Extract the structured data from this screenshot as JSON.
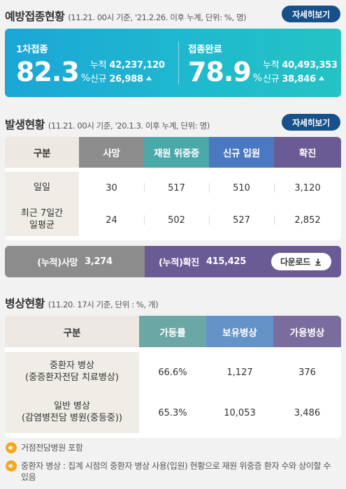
{
  "vaccination": {
    "title": "예방접종현황",
    "note": "(11.21. 00시 기준, '21.2.26. 이후 누계, 단위: %, 명)",
    "more_label": "자세히보기",
    "first_dose": {
      "label": "1차접종",
      "rate": "82.3",
      "unit": "%",
      "cumulative_label": "누적",
      "cumulative": "42,237,120",
      "new_label": "신규",
      "new": "26,988"
    },
    "complete": {
      "label": "접종완료",
      "rate": "78.9",
      "unit": "%",
      "cumulative_label": "누적",
      "cumulative": "40,493,353",
      "new_label": "신규",
      "new": "38,846"
    }
  },
  "occurrence": {
    "title": "발생현황",
    "note": "(11.21. 00시 기준, '20.1.3. 이후 누계, 단위: 명)",
    "more_label": "자세히보기",
    "headers": [
      "구분",
      "사망",
      "재원 위중증",
      "신규 입원",
      "확진"
    ],
    "header_colors": [
      "#ede8e1",
      "#8c8c8c",
      "#4aa8a8",
      "#4a79c2",
      "#6b5b95"
    ],
    "rows": [
      {
        "label": "일일",
        "values": [
          "30",
          "517",
          "510",
          "3,120"
        ]
      },
      {
        "label": "최근 7일간\n일평균",
        "values": [
          "24",
          "502",
          "527",
          "2,852"
        ]
      }
    ],
    "cumulative_death_label": "(누적)사망",
    "cumulative_death": "3,274",
    "cumulative_confirmed_label": "(누적)확진",
    "cumulative_confirmed": "415,425",
    "download_label": "다운로드"
  },
  "beds": {
    "title": "병상현황",
    "note": "(11.20. 17시 기준, 단위 : %, 개)",
    "headers": [
      "구분",
      "가동률",
      "보유병상",
      "가용병상"
    ],
    "header_colors": [
      "#ede8e1",
      "#6ba7a5",
      "#6494c7",
      "#7a6c9c"
    ],
    "rows": [
      {
        "label": "중환자 병상\n(중증환자전담 치료병상)",
        "values": [
          "66.6%",
          "1,127",
          "376"
        ]
      },
      {
        "label": "일반 병상\n(감염병전담 병원(중등중))",
        "values": [
          "65.3%",
          "10,053",
          "3,486"
        ]
      }
    ]
  },
  "notes": [
    "거점전담병원 포함",
    "중환자 병상 : 집계 시점의 중환자 병상 사용(입원) 현황으로 재원 위중증 환자 수와 상이할 수 있음"
  ],
  "colors": {
    "accent": "#17508a",
    "vaccine_panel": "#1fb3d2",
    "note_icon": "#f3a61f"
  }
}
